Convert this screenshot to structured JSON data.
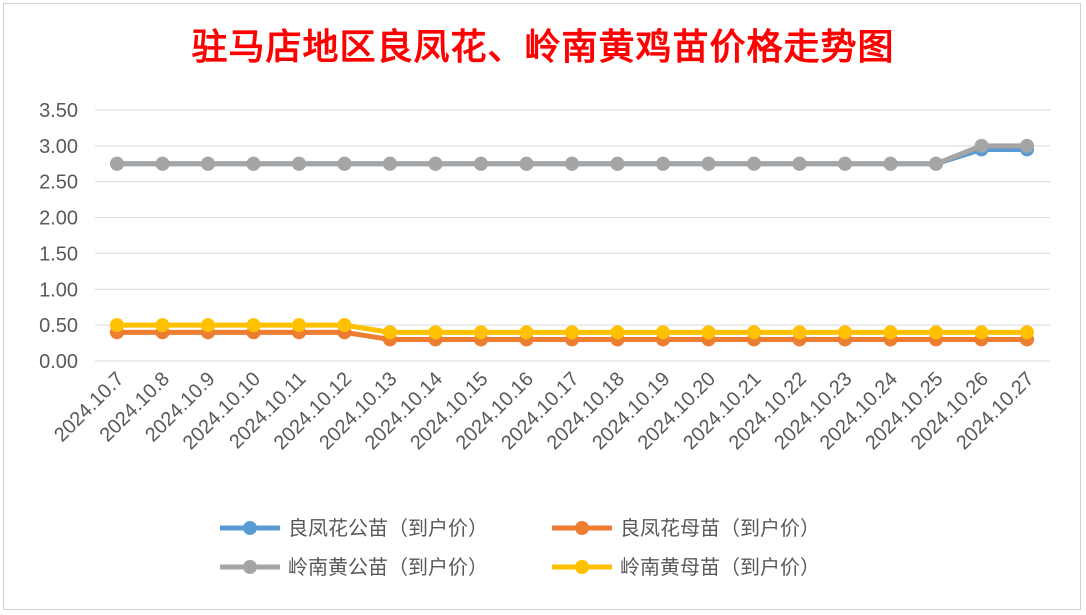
{
  "chart_data": {
    "type": "line",
    "title": "驻马店地区良凤花、岭南黄鸡苗价格走势图",
    "xlabel": "",
    "ylabel": "",
    "ylim": [
      0,
      3.5
    ],
    "yticks": [
      "0.00",
      "0.50",
      "1.00",
      "1.50",
      "2.00",
      "2.50",
      "3.00",
      "3.50"
    ],
    "grid": true,
    "legend_position": "bottom",
    "categories": [
      "2024.10.7",
      "2024.10.8",
      "2024.10.9",
      "2024.10.10",
      "2024.10.11",
      "2024.10.12",
      "2024.10.13",
      "2024.10.14",
      "2024.10.15",
      "2024.10.16",
      "2024.10.17",
      "2024.10.18",
      "2024.10.19",
      "2024.10.20",
      "2024.10.21",
      "2024.10.22",
      "2024.10.23",
      "2024.10.24",
      "2024.10.25",
      "2024.10.26",
      "2024.10.27"
    ],
    "series": [
      {
        "name": "良凤花公苗（到户价）",
        "color": "#5b9bd5",
        "values": [
          2.75,
          2.75,
          2.75,
          2.75,
          2.75,
          2.75,
          2.75,
          2.75,
          2.75,
          2.75,
          2.75,
          2.75,
          2.75,
          2.75,
          2.75,
          2.75,
          2.75,
          2.75,
          2.75,
          2.95,
          2.95
        ]
      },
      {
        "name": "良凤花母苗（到户价）",
        "color": "#ed7d31",
        "values": [
          0.4,
          0.4,
          0.4,
          0.4,
          0.4,
          0.4,
          0.3,
          0.3,
          0.3,
          0.3,
          0.3,
          0.3,
          0.3,
          0.3,
          0.3,
          0.3,
          0.3,
          0.3,
          0.3,
          0.3,
          0.3
        ]
      },
      {
        "name": "岭南黄公苗（到户价）",
        "color": "#a5a5a5",
        "values": [
          2.75,
          2.75,
          2.75,
          2.75,
          2.75,
          2.75,
          2.75,
          2.75,
          2.75,
          2.75,
          2.75,
          2.75,
          2.75,
          2.75,
          2.75,
          2.75,
          2.75,
          2.75,
          2.75,
          3.0,
          3.0
        ]
      },
      {
        "name": "岭南黄母苗（到户价）",
        "color": "#ffc000",
        "values": [
          0.5,
          0.5,
          0.5,
          0.5,
          0.5,
          0.5,
          0.4,
          0.4,
          0.4,
          0.4,
          0.4,
          0.4,
          0.4,
          0.4,
          0.4,
          0.4,
          0.4,
          0.4,
          0.4,
          0.4,
          0.4
        ]
      }
    ]
  }
}
